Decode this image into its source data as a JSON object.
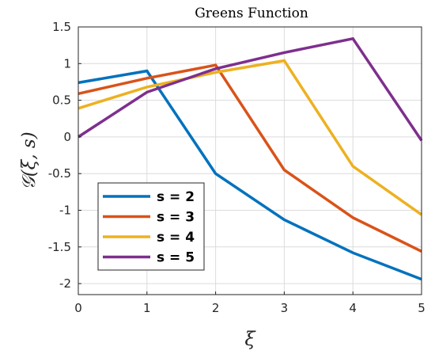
{
  "chart_data": {
    "type": "line",
    "title": "Greens Function",
    "xlabel": "ξ",
    "ylabel": "𝒢(ξ, s)",
    "x": [
      0,
      1,
      2,
      3,
      4,
      5
    ],
    "xlim": [
      0,
      5
    ],
    "ylim": [
      -2.15,
      1.5
    ],
    "xticks": [
      0,
      1,
      2,
      3,
      4,
      5
    ],
    "yticks": [
      1.5,
      1,
      0.5,
      0,
      -0.5,
      -1,
      -1.5,
      -2
    ],
    "xtick_labels": [
      "0",
      "1",
      "2",
      "3",
      "4",
      "5"
    ],
    "ytick_labels": [
      "1.5",
      "1",
      "0.5",
      "0",
      "-0.5",
      "-1",
      "-1.5",
      "-2"
    ],
    "grid": true,
    "legend_position": "bottom-left",
    "series": [
      {
        "name": "s = 2",
        "color": "#0072BD",
        "points": [
          [
            0,
            0.74
          ],
          [
            1,
            0.9
          ],
          [
            2,
            -0.5
          ],
          [
            3,
            -1.13
          ],
          [
            4,
            -1.58
          ],
          [
            5,
            -1.94
          ]
        ]
      },
      {
        "name": "s = 3",
        "color": "#D95319",
        "points": [
          [
            0,
            0.59
          ],
          [
            1,
            0.8
          ],
          [
            2,
            0.98
          ],
          [
            3,
            -0.45
          ],
          [
            4,
            -1.1
          ],
          [
            5,
            -1.56
          ]
        ]
      },
      {
        "name": "s = 4",
        "color": "#EDB120",
        "points": [
          [
            0,
            0.39
          ],
          [
            1,
            0.68
          ],
          [
            2,
            0.88
          ],
          [
            3,
            1.04
          ],
          [
            4,
            -0.4
          ],
          [
            5,
            -1.06
          ]
        ]
      },
      {
        "name": "s = 5",
        "color": "#7E2F8E",
        "points": [
          [
            0,
            0.0
          ],
          [
            1,
            0.61
          ],
          [
            2,
            0.93
          ],
          [
            3,
            1.15
          ],
          [
            4,
            1.34
          ],
          [
            5,
            -0.05
          ]
        ]
      }
    ]
  }
}
